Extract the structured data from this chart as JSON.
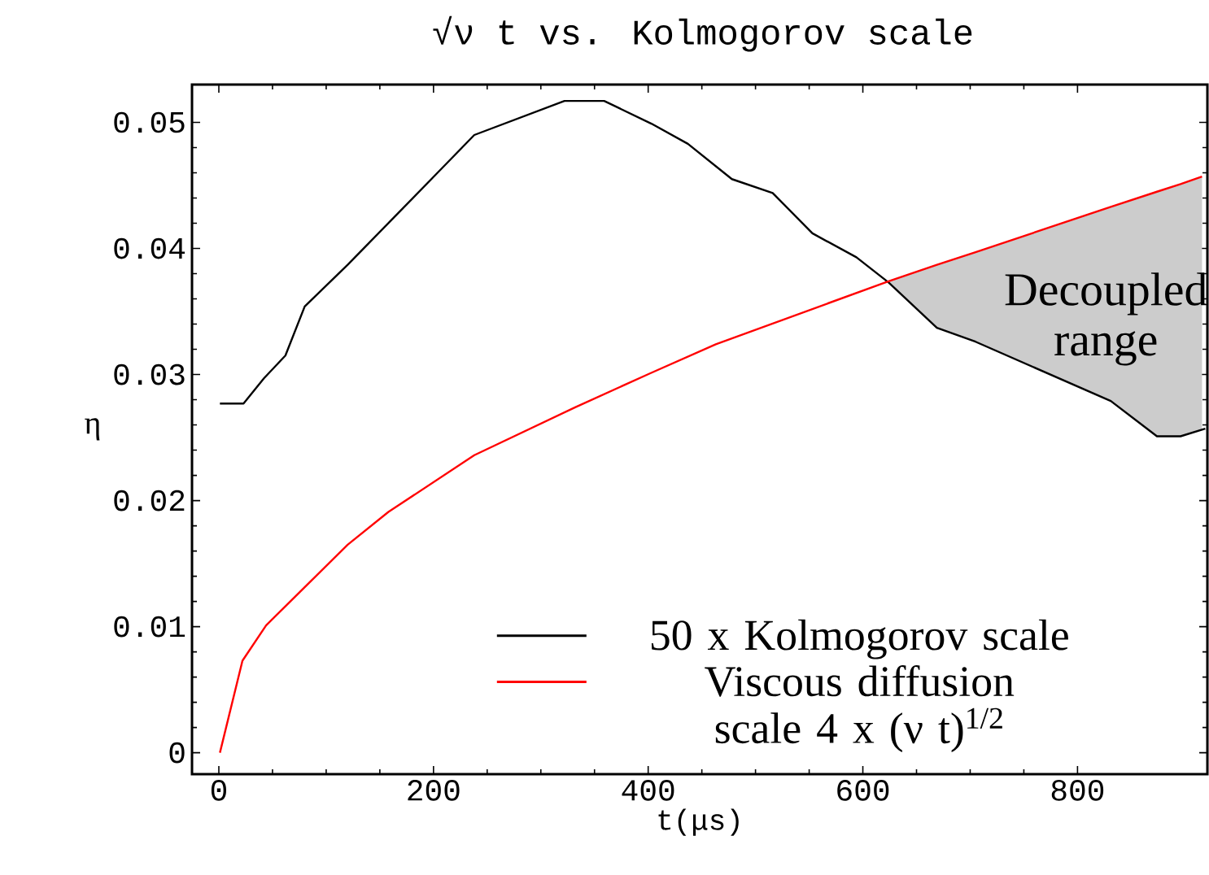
{
  "chart_data": {
    "type": "line",
    "title": "√ν t vs. Kolmogorov scale",
    "xlabel": "t(μs)",
    "ylabel": "η",
    "series": [
      {
        "name": "50 x Kolmogorov scale",
        "color": "#000000",
        "x": [
          1,
          23,
          42,
          62,
          80,
          120,
          198,
          238,
          322,
          359,
          403,
          437,
          478,
          516,
          553,
          594,
          624,
          669,
          705,
          831,
          874,
          896,
          919
        ],
        "values": [
          0.0277,
          0.0277,
          0.0297,
          0.0315,
          0.0354,
          0.0387,
          0.0455,
          0.049,
          0.0517,
          0.0517,
          0.0499,
          0.0483,
          0.0455,
          0.0444,
          0.0412,
          0.0393,
          0.0373,
          0.0337,
          0.0326,
          0.0279,
          0.0251,
          0.0251,
          0.0257
        ]
      },
      {
        "name": "Viscous diffusion scale 4 x (ν t)$^{1/2}$",
        "color": "#ff0000",
        "x": [
          1,
          22,
          44,
          120,
          158,
          238,
          332,
          402,
          463,
          624,
          669,
          705,
          831,
          874,
          896,
          916
        ],
        "values": [
          0.0,
          0.0073,
          0.0101,
          0.0165,
          0.0191,
          0.0236,
          0.0274,
          0.0301,
          0.0324,
          0.0374,
          0.0387,
          0.0397,
          0.0433,
          0.0445,
          0.0451,
          0.0457
        ],
        "lower": [
          null,
          null,
          null,
          null,
          null,
          null,
          null,
          null,
          null,
          0.0373,
          0.0337,
          0.0326,
          0.0279,
          0.0251,
          0.0251,
          0.0256
        ],
        "upper": [
          null,
          null,
          null,
          null,
          null,
          null,
          null,
          null,
          null,
          0.0374,
          0.0387,
          0.0397,
          0.0433,
          0.0445,
          0.0451,
          0.0457
        ]
      }
    ],
    "annotations": [
      "Decoupled range"
    ],
    "xlim": [
      -25,
      921
    ],
    "ylim": [
      -0.0017,
      0.053
    ],
    "xticks": [
      0,
      200,
      400,
      600,
      800
    ],
    "yticks": [
      0,
      0.01,
      0.02,
      0.03,
      0.04,
      0.05
    ],
    "legend": "bottom right",
    "grid": false,
    "marker": "none",
    "line_style": "solid"
  }
}
